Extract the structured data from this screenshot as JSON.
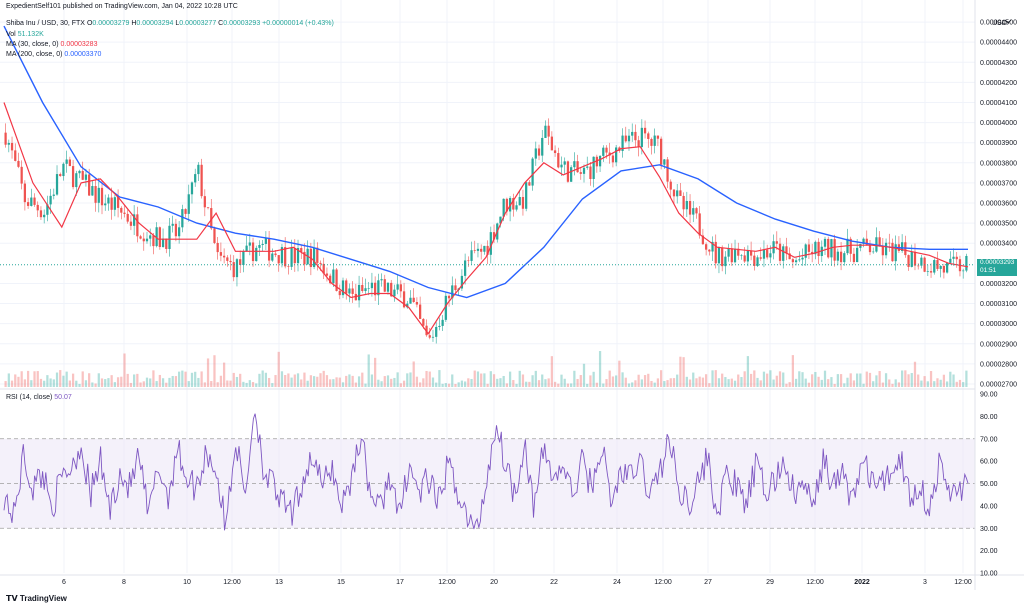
{
  "header": {
    "publisher": "ExpedientSelf101 published on TradingView.com, Jan 04, 2022 10:28 UTC",
    "symbol": "Shiba Inu / USD, 30, FTX",
    "ohlc_labels": [
      "O",
      "H",
      "L",
      "C"
    ],
    "open": "0.00003279",
    "high": "0.00003294",
    "low": "0.00003277",
    "close": "0.00003293",
    "change": "+0.00000014 (+0.43%)",
    "vol_label": "Vol",
    "vol_value": "51.132K",
    "ma30_label": "MA (30, close, 0)",
    "ma30_value": "0.00003283",
    "ma200_label": "MA (200, close, 0)",
    "ma200_value": "0.00003370",
    "rsi_label": "RSI (14, close)",
    "rsi_value": "50.07"
  },
  "currency": "USD",
  "price_tag": {
    "price": "0.00003293",
    "timer": "01:51"
  },
  "footer": {
    "logo_text": "TradingView"
  },
  "colors": {
    "candle_up": "#26a69a",
    "candle_down": "#ef5350",
    "ma30": "#f23645",
    "ma200": "#2962ff",
    "rsi": "#7e57c2",
    "rsi_band": "#ede7f6"
  },
  "chart_data": [
    {
      "type": "candlestick",
      "title": "Shiba Inu / USD, 30, FTX",
      "price_axis_labels": [
        "0.00004500",
        "0.00004400",
        "0.00004300",
        "0.00004200",
        "0.00004100",
        "0.00004000",
        "0.00003900",
        "0.00003800",
        "0.00003700",
        "0.00003600",
        "0.00003500",
        "0.00003400",
        "0.00003200",
        "0.00003100",
        "0.00003000",
        "0.00002900",
        "0.00002800",
        "0.00002700"
      ],
      "ylim": [
        2.67e-05,
        4.57e-05
      ],
      "x_tick_labels": [
        "6",
        "8",
        "10",
        "12:00",
        "13",
        "15",
        "17",
        "12:00",
        "20",
        "22",
        "24",
        "12:00",
        "27",
        "29",
        "12:00",
        "2022",
        "3",
        "12:00"
      ],
      "close_path": {
        "x": [
          0,
          2,
          4,
          6,
          8,
          10,
          12,
          14,
          16,
          18,
          20,
          22,
          24,
          26,
          28,
          30,
          32,
          34,
          36,
          38,
          40,
          42,
          44,
          46,
          48,
          50,
          52,
          54,
          56,
          58,
          60,
          62,
          64,
          66,
          68,
          70,
          72,
          74,
          76,
          78,
          80,
          82,
          84,
          86,
          88,
          90,
          92,
          94,
          96,
          98,
          100
        ],
        "y": [
          3.95e-05,
          3.62e-05,
          3.56e-05,
          3.78e-05,
          3.7e-05,
          3.62e-05,
          3.56e-05,
          3.48e-05,
          3.42e-05,
          3.45e-05,
          3.76e-05,
          3.32e-05,
          3.28e-05,
          3.38e-05,
          3.36e-05,
          3.33e-05,
          3.34e-05,
          3.23e-05,
          3.13e-05,
          3.18e-05,
          3.16e-05,
          3.13e-05,
          2.9e-05,
          3.12e-05,
          3.3e-05,
          3.38e-05,
          3.6e-05,
          3.62e-05,
          3.96e-05,
          3.77e-05,
          3.74e-05,
          3.82e-05,
          3.88e-05,
          3.93e-05,
          3.88e-05,
          3.6e-05,
          3.5e-05,
          3.33e-05,
          3.37e-05,
          3.34e-05,
          3.37e-05,
          3.3e-05,
          3.36e-05,
          3.37e-05,
          3.36e-05,
          3.38e-05,
          3.36e-05,
          3.34e-05,
          3.3e-05,
          3.27e-05,
          3.293e-05
        ]
      },
      "series": [
        {
          "name": "MA (30, close, 0)",
          "x": [
            0,
            3,
            6,
            8,
            10,
            12,
            14,
            16,
            18,
            20,
            22,
            24,
            26,
            28,
            30,
            32,
            34,
            36,
            38,
            40,
            42,
            44,
            46,
            48,
            50,
            52,
            54,
            56,
            58,
            60,
            62,
            64,
            66,
            68,
            70,
            72,
            74,
            76,
            78,
            80,
            82,
            84,
            86,
            88,
            90,
            92,
            94,
            96,
            98,
            100
          ],
          "values": [
            4.1e-05,
            3.7e-05,
            3.48e-05,
            3.7e-05,
            3.72e-05,
            3.62e-05,
            3.5e-05,
            3.42e-05,
            3.42e-05,
            3.42e-05,
            3.55e-05,
            3.36e-05,
            3.36e-05,
            3.36e-05,
            3.38e-05,
            3.32e-05,
            3.2e-05,
            3.13e-05,
            3.15e-05,
            3.15e-05,
            3.08e-05,
            2.95e-05,
            3.1e-05,
            3.22e-05,
            3.33e-05,
            3.55e-05,
            3.7e-05,
            3.8e-05,
            3.74e-05,
            3.78e-05,
            3.82e-05,
            3.87e-05,
            3.88e-05,
            3.73e-05,
            3.55e-05,
            3.45e-05,
            3.38e-05,
            3.37e-05,
            3.36e-05,
            3.38e-05,
            3.33e-05,
            3.35e-05,
            3.38e-05,
            3.39e-05,
            3.39e-05,
            3.38e-05,
            3.36e-05,
            3.34e-05,
            3.3e-05,
            3.283e-05
          ]
        },
        {
          "name": "MA (200, close, 0)",
          "x": [
            0,
            4,
            8,
            12,
            16,
            20,
            24,
            28,
            32,
            36,
            40,
            44,
            48,
            52,
            56,
            60,
            64,
            68,
            72,
            74,
            76,
            80,
            84,
            88,
            92,
            96,
            100
          ],
          "values": [
            4.48e-05,
            4.1e-05,
            3.78e-05,
            3.63e-05,
            3.58e-05,
            3.5e-05,
            3.45e-05,
            3.42e-05,
            3.38e-05,
            3.32e-05,
            3.26e-05,
            3.18e-05,
            3.13e-05,
            3.2e-05,
            3.38e-05,
            3.62e-05,
            3.76e-05,
            3.79e-05,
            3.72e-05,
            3.66e-05,
            3.6e-05,
            3.52e-05,
            3.46e-05,
            3.41e-05,
            3.38e-05,
            3.37e-05,
            3.37e-05
          ]
        }
      ]
    },
    {
      "type": "line",
      "title": "RSI (14, close)",
      "rsi_axis_labels": [
        "90.00",
        "80.00",
        "70.00",
        "60.00",
        "50.00",
        "40.00",
        "30.00",
        "20.00",
        "10.00"
      ],
      "ylim": [
        10,
        90
      ],
      "upper_band": 70,
      "middle": 50,
      "lower_band": 30,
      "series": [
        {
          "name": "RSI (14, close)",
          "x": [
            0,
            1,
            2,
            3,
            4,
            5,
            6,
            7,
            8,
            9,
            10,
            11,
            12,
            13,
            14,
            15,
            16,
            17,
            18,
            19,
            20,
            21,
            22,
            23,
            24,
            25,
            26,
            27,
            28,
            29,
            30,
            31,
            32,
            33,
            34,
            35,
            36,
            37,
            38,
            39,
            40,
            41,
            42,
            43,
            44,
            45,
            46,
            47,
            48,
            49,
            50,
            51,
            52,
            53,
            54,
            55,
            56,
            57,
            58,
            59,
            60,
            61,
            62,
            63,
            64,
            65,
            66,
            67,
            68,
            69,
            70,
            71,
            72,
            73,
            74,
            75,
            76,
            77,
            78,
            79,
            80,
            81,
            82,
            83,
            84,
            85,
            86,
            87,
            88,
            89,
            90,
            91,
            92,
            93,
            94,
            95,
            96,
            97,
            98,
            99,
            100
          ],
          "values": [
            45,
            35,
            62,
            48,
            55,
            40,
            52,
            58,
            67,
            45,
            60,
            38,
            55,
            48,
            62,
            35,
            58,
            44,
            66,
            52,
            48,
            65,
            56,
            30,
            70,
            44,
            85,
            55,
            48,
            40,
            36,
            52,
            63,
            48,
            58,
            40,
            52,
            72,
            46,
            38,
            55,
            33,
            60,
            45,
            52,
            40,
            58,
            48,
            35,
            28,
            50,
            77,
            60,
            45,
            70,
            38,
            66,
            52,
            58,
            44,
            60,
            48,
            68,
            40,
            56,
            52,
            60,
            45,
            55,
            70,
            48,
            42,
            50,
            62,
            35,
            55,
            48,
            40,
            58,
            46,
            52,
            60,
            44,
            50,
            38,
            62,
            48,
            55,
            42,
            60,
            52,
            48,
            56,
            62,
            44,
            50,
            38,
            58,
            46,
            48,
            50.07
          ]
        }
      ]
    }
  ]
}
